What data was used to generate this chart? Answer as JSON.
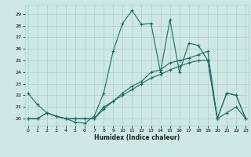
{
  "xlabel": "Humidex (Indice chaleur)",
  "bg_color": "#cde8e5",
  "grid_color": "#a8ceca",
  "line_color": "#1d6b62",
  "line1_x": [
    0,
    1,
    2,
    3,
    4,
    5,
    6,
    7,
    8,
    9,
    10,
    11,
    12,
    13,
    14,
    15,
    16,
    17,
    18,
    19,
    20,
    21,
    22,
    23
  ],
  "line1_y": [
    22.2,
    21.2,
    20.5,
    20.2,
    20.0,
    19.7,
    19.6,
    20.2,
    22.2,
    25.8,
    28.2,
    29.3,
    28.1,
    28.2,
    24.0,
    28.5,
    24.0,
    26.5,
    26.3,
    25.0,
    20.0,
    22.2,
    22.0,
    20.0
  ],
  "line2_x": [
    0,
    1,
    2,
    3,
    4,
    5,
    6,
    7,
    8,
    9,
    10,
    11,
    12,
    13,
    14,
    15,
    16,
    17,
    18,
    19,
    20,
    21,
    22,
    23
  ],
  "line2_y": [
    20.0,
    20.0,
    20.5,
    20.2,
    20.0,
    20.0,
    20.0,
    20.0,
    20.8,
    21.5,
    22.2,
    22.8,
    23.2,
    24.0,
    24.2,
    24.8,
    25.0,
    25.2,
    25.5,
    25.8,
    20.0,
    22.2,
    22.0,
    20.0
  ],
  "line3_x": [
    0,
    1,
    2,
    3,
    4,
    5,
    6,
    7,
    8,
    9,
    10,
    11,
    12,
    13,
    14,
    15,
    16,
    17,
    18,
    19,
    20,
    21,
    22,
    23
  ],
  "line3_y": [
    20.0,
    20.0,
    20.5,
    20.2,
    20.0,
    20.0,
    20.0,
    20.0,
    21.0,
    21.5,
    22.0,
    22.5,
    23.0,
    23.5,
    23.8,
    24.2,
    24.5,
    24.8,
    25.0,
    25.0,
    20.0,
    20.5,
    21.0,
    20.0
  ],
  "xlim": [
    -0.3,
    23.3
  ],
  "ylim": [
    19.4,
    29.8
  ],
  "yticks": [
    20,
    21,
    22,
    23,
    24,
    25,
    26,
    27,
    28,
    29
  ],
  "xticks": [
    0,
    1,
    2,
    3,
    4,
    5,
    6,
    7,
    8,
    9,
    10,
    11,
    12,
    13,
    14,
    15,
    16,
    17,
    18,
    19,
    20,
    21,
    22,
    23
  ]
}
